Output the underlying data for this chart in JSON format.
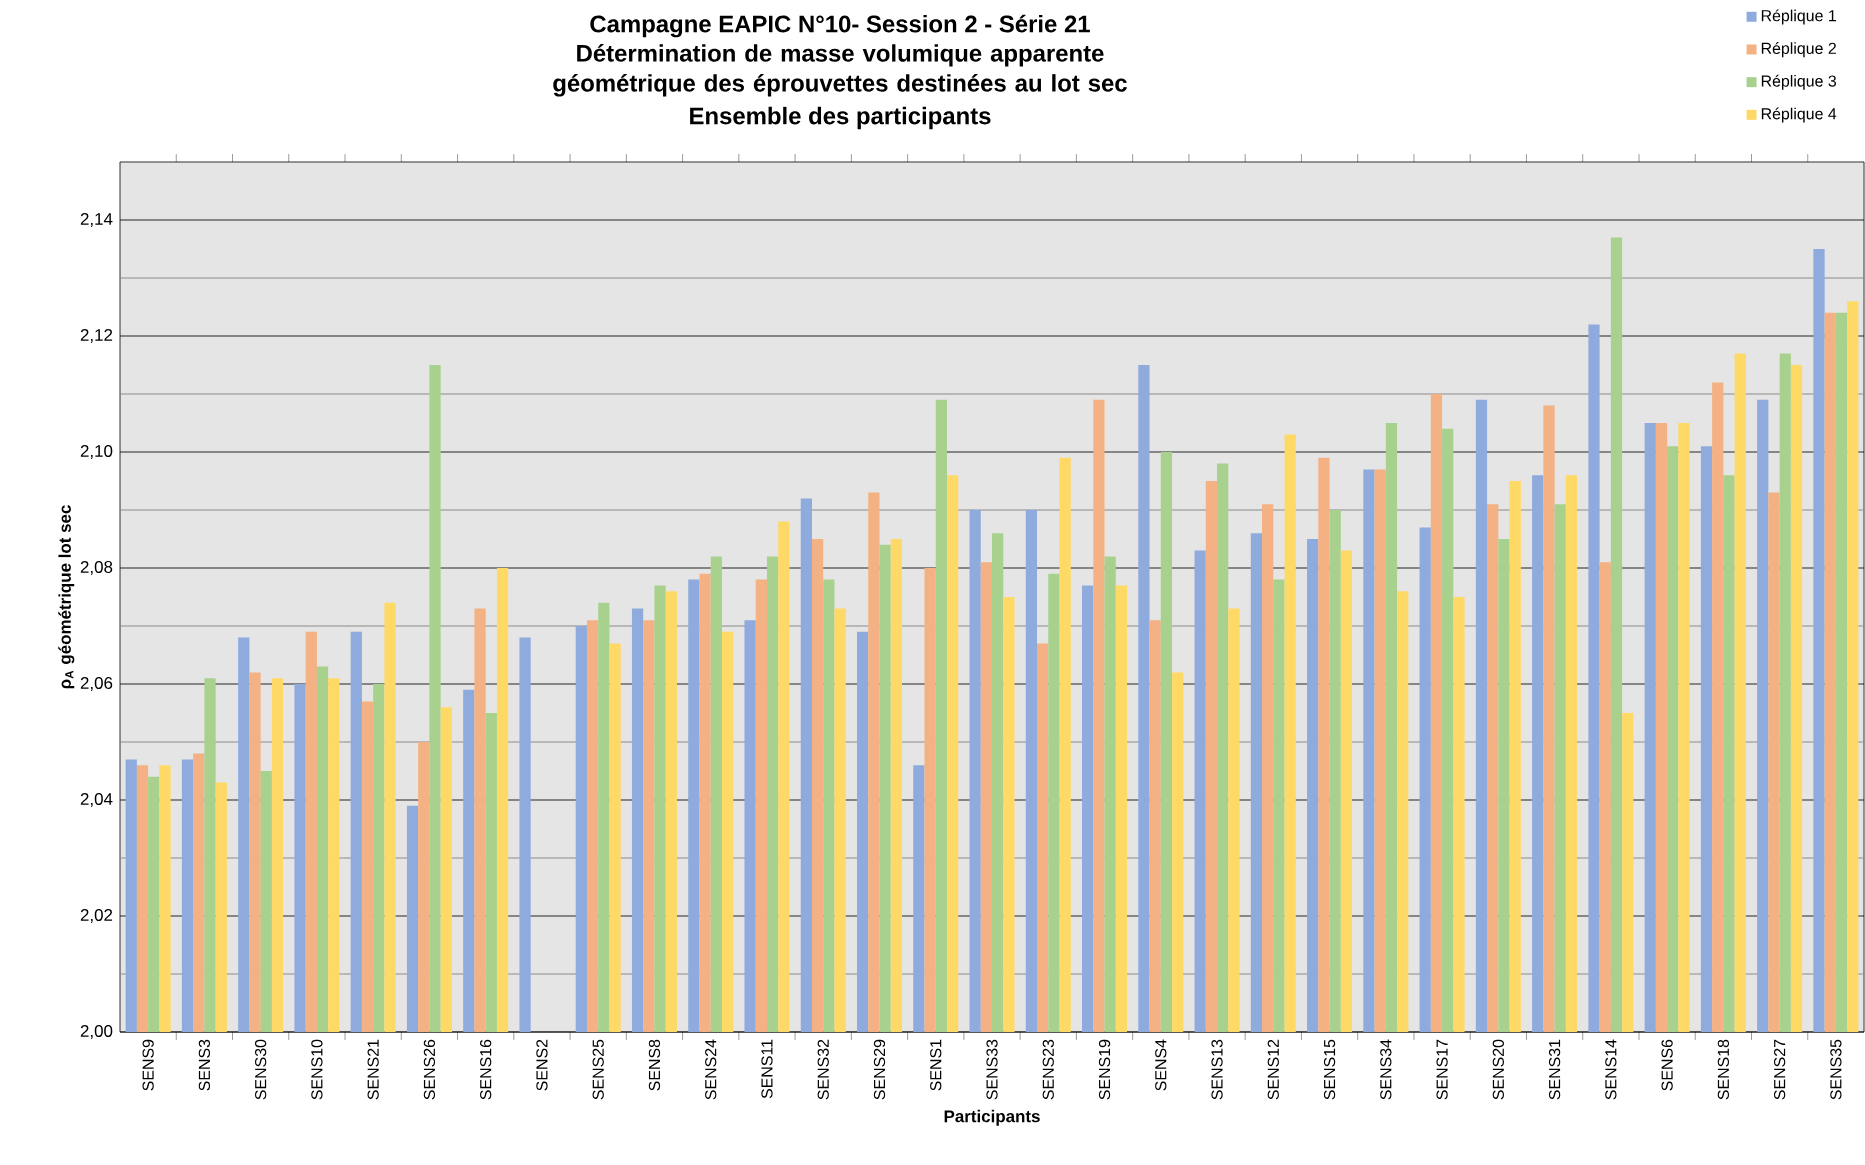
{
  "chart_data": {
    "type": "bar",
    "title": "Campagne EAPIC N°10- Session 2 - Série 21",
    "subtitle": "Détermination de masse volumique apparente géométrique des éprouvettes destinées au lot sec",
    "annotations": [
      "Ensemble des participants"
    ],
    "xlabel": "Participants",
    "ylabel": "ρ$_{A}$ géométrique lot sec",
    "categories": [
      "SENS9",
      "SENS3",
      "SENS30",
      "SENS10",
      "SENS21",
      "SENS26",
      "SENS16",
      "SENS2",
      "SENS25",
      "SENS8",
      "SENS24",
      "SENS11",
      "SENS32",
      "SENS29",
      "SENS1",
      "SENS33",
      "SENS23",
      "SENS19",
      "SENS4",
      "SENS13",
      "SENS12",
      "SENS15",
      "SENS34",
      "SENS17",
      "SENS20",
      "SENS31",
      "SENS14",
      "SENS6",
      "SENS18",
      "SENS27",
      "SENS35"
    ],
    "series": [
      {
        "name": "Réplique 1",
        "color": "#8faadc",
        "values": [
          2.047,
          2.047,
          2.068,
          2.06,
          2.069,
          2.039,
          2.059,
          2.068,
          2.07,
          2.073,
          2.078,
          2.071,
          2.092,
          2.069,
          2.046,
          2.09,
          2.09,
          2.077,
          2.115,
          2.083,
          2.086,
          2.085,
          2.097,
          2.087,
          2.109,
          2.096,
          2.122,
          2.105,
          2.101,
          2.109,
          2.135
        ]
      },
      {
        "name": "Réplique 2",
        "color": "#f4b183",
        "values": [
          2.046,
          2.048,
          2.062,
          2.069,
          2.057,
          2.05,
          2.073,
          null,
          2.071,
          2.071,
          2.079,
          2.078,
          2.085,
          2.093,
          2.08,
          2.081,
          2.067,
          2.109,
          2.071,
          2.095,
          2.091,
          2.099,
          2.097,
          2.11,
          2.091,
          2.108,
          2.081,
          2.105,
          2.112,
          2.093,
          2.124
        ]
      },
      {
        "name": "Réplique 3",
        "color": "#a9d18e",
        "values": [
          2.044,
          2.061,
          2.045,
          2.063,
          2.06,
          2.115,
          2.055,
          null,
          2.074,
          2.077,
          2.082,
          2.082,
          2.078,
          2.084,
          2.109,
          2.086,
          2.079,
          2.082,
          2.1,
          2.098,
          2.078,
          2.09,
          2.105,
          2.104,
          2.085,
          2.091,
          2.137,
          2.101,
          2.096,
          2.117,
          2.124
        ]
      },
      {
        "name": "Réplique 4",
        "color": "#ffd966",
        "values": [
          2.046,
          2.043,
          2.061,
          2.061,
          2.074,
          2.056,
          2.08,
          null,
          2.067,
          2.076,
          2.069,
          2.088,
          2.073,
          2.085,
          2.096,
          2.075,
          2.099,
          2.077,
          2.062,
          2.073,
          2.103,
          2.083,
          2.076,
          2.075,
          2.095,
          2.096,
          2.055,
          2.105,
          2.117,
          2.115,
          2.126
        ]
      }
    ],
    "ylim": [
      2.0,
      2.15
    ],
    "yticks": [
      {
        "value": 2.0,
        "label": "2,00"
      },
      {
        "value": 2.01,
        "label": null
      },
      {
        "value": 2.02,
        "label": "2,02"
      },
      {
        "value": 2.03,
        "label": null
      },
      {
        "value": 2.04,
        "label": "2,04"
      },
      {
        "value": 2.05,
        "label": null
      },
      {
        "value": 2.06,
        "label": "2,06"
      },
      {
        "value": 2.07,
        "label": null
      },
      {
        "value": 2.08,
        "label": "2,08"
      },
      {
        "value": 2.09,
        "label": null
      },
      {
        "value": 2.1,
        "label": "2,10"
      },
      {
        "value": 2.11,
        "label": null
      },
      {
        "value": 2.12,
        "label": "2,12"
      },
      {
        "value": 2.13,
        "label": null
      },
      {
        "value": 2.14,
        "label": "2,14"
      }
    ],
    "grid": "y",
    "legend": "top right"
  }
}
